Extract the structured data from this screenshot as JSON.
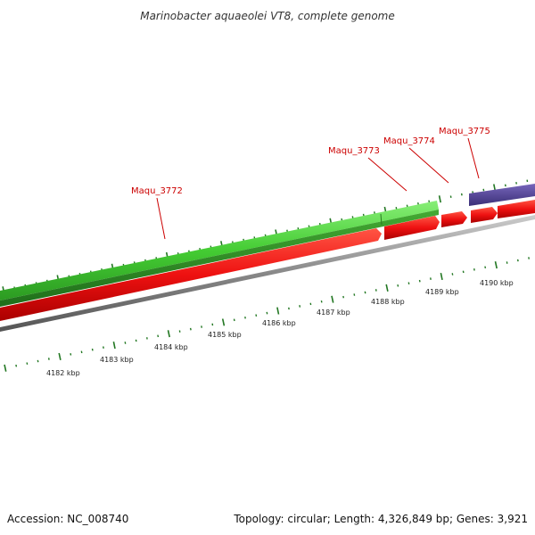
{
  "title": "Marinobacter aquaeolei VT8, complete genome",
  "footer": {
    "accession": "Accession: NC_008740",
    "summary": "Topology: circular; Length: 4,326,849 bp; Genes: 3,921"
  },
  "genes": [
    {
      "name": "Maqu_3772"
    },
    {
      "name": "Maqu_3773"
    },
    {
      "name": "Maqu_3774"
    },
    {
      "name": "Maqu_3775"
    }
  ],
  "kbp_ticks": [
    "4182 kbp",
    "4183 kbp",
    "4184 kbp",
    "4185 kbp",
    "4186 kbp",
    "4187 kbp",
    "4188 kbp",
    "4189 kbp",
    "4190 kbp"
  ],
  "colors": {
    "gene_label": "#cc0000",
    "forward_light": "#55cc44",
    "forward_dark": "#228822",
    "cds_red": "#ee1111",
    "cds_blue": "#554499",
    "backbone_grey": "#888888",
    "tick_green": "#227722"
  }
}
